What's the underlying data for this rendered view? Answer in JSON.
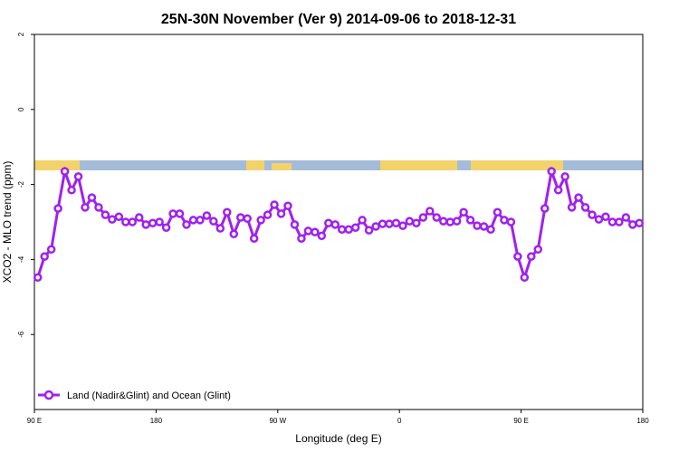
{
  "chart_data": {
    "type": "line",
    "title": "25N-30N November (Ver 9)   2014-09-06 to 2018-12-31",
    "xlabel": "Longitude (deg E)",
    "ylabel": "XCO2 - MLO trend (ppm)",
    "xlim": [
      90,
      540
    ],
    "ylim": [
      -8,
      2
    ],
    "xticks": [
      {
        "value": 90,
        "label": "90 E"
      },
      180,
      {
        "value": 270,
        "label": "90 W"
      },
      {
        "value": 360,
        "label": "0"
      },
      {
        "value": 450,
        "label": "90 E"
      },
      {
        "value": 540,
        "label": "180"
      }
    ],
    "yticks": [
      2,
      0,
      -2,
      -4,
      -6
    ],
    "legend": "bottom-left",
    "x": [
      92.5,
      97.5,
      102.5,
      107.5,
      112.5,
      117.5,
      122.5,
      127.5,
      132.5,
      137.5,
      142.5,
      147.5,
      152.5,
      157.5,
      162.5,
      167.5,
      172.5,
      177.5,
      182.5,
      187.5,
      192.5,
      197.5,
      202.5,
      207.5,
      212.5,
      217.5,
      222.5,
      227.5,
      232.5,
      237.5,
      242.5,
      247.5,
      252.5,
      257.5,
      262.5,
      267.5,
      272.5,
      277.5,
      282.5,
      287.5,
      292.5,
      297.5,
      302.5,
      307.5,
      312.5,
      317.5,
      322.5,
      327.5,
      332.5,
      337.5,
      342.5,
      347.5,
      352.5,
      357.5,
      362.5,
      367.5,
      372.5,
      377.5,
      382.5,
      387.5,
      392.5,
      397.5,
      402.5,
      407.5,
      412.5,
      417.5,
      422.5,
      427.5,
      432.5,
      437.5,
      442.5,
      447.5,
      452.5,
      457.5,
      462.5,
      467.5,
      472.5,
      477.5,
      482.5,
      487.5,
      492.5,
      497.5,
      502.5,
      507.5,
      512.5,
      517.5,
      522.5,
      527.5,
      532.5,
      537.5
    ],
    "series": [
      {
        "name": "Land (Nadir&Glint) and Ocean (Glint)",
        "color": "#a020f0",
        "values": [
          -4.48,
          -3.92,
          -3.73,
          -2.64,
          -1.65,
          -2.15,
          -1.79,
          -2.61,
          -2.35,
          -2.61,
          -2.81,
          -2.93,
          -2.86,
          -3.0,
          -3.0,
          -2.88,
          -3.07,
          -3.03,
          -3.0,
          -3.15,
          -2.78,
          -2.78,
          -3.07,
          -2.95,
          -2.95,
          -2.83,
          -2.98,
          -3.17,
          -2.74,
          -3.32,
          -2.88,
          -2.91,
          -3.44,
          -2.95,
          -2.81,
          -2.54,
          -2.78,
          -2.57,
          -3.07,
          -3.44,
          -3.24,
          -3.27,
          -3.37,
          -3.03,
          -3.07,
          -3.2,
          -3.2,
          -3.15,
          -2.95,
          -3.22,
          -3.12,
          -3.05,
          -3.05,
          -3.03,
          -3.1,
          -2.98,
          -3.03,
          -2.88,
          -2.71,
          -2.88,
          -2.98,
          -3.0,
          -2.98,
          -2.74,
          -2.95,
          -3.1,
          -3.12,
          -3.2,
          -2.74,
          -2.95,
          -3.0,
          -3.92,
          -4.48,
          -3.92,
          -3.73,
          -2.64,
          -1.65,
          -2.15,
          -1.79,
          -2.61,
          -2.35,
          -2.61,
          -2.81,
          -2.93,
          -2.86,
          -3.0,
          -3.0,
          -2.88,
          -3.07,
          -3.03
        ]
      }
    ]
  }
}
